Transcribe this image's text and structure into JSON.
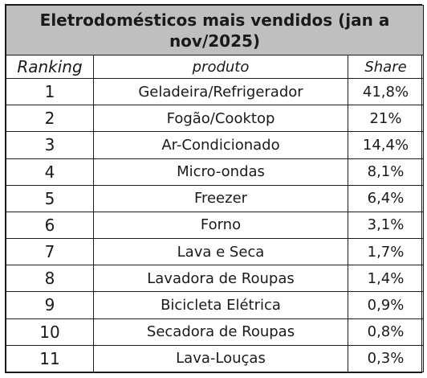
{
  "chart_data": {
    "type": "table",
    "title": "Eletrodomésticos mais vendidos (jan a nov/2025)",
    "columns": [
      "Ranking",
      "produto",
      "Share"
    ],
    "rows": [
      {
        "rank": "1",
        "product": "Geladeira/Refrigerador",
        "share": "41,8%"
      },
      {
        "rank": "2",
        "product": "Fogão/Cooktop",
        "share": "21%"
      },
      {
        "rank": "3",
        "product": "Ar-Condicionado",
        "share": "14,4%"
      },
      {
        "rank": "4",
        "product": "Micro-ondas",
        "share": "8,1%"
      },
      {
        "rank": "5",
        "product": "Freezer",
        "share": "6,4%"
      },
      {
        "rank": "6",
        "product": "Forno",
        "share": "3,1%"
      },
      {
        "rank": "7",
        "product": "Lava e Seca",
        "share": "1,7%"
      },
      {
        "rank": "8",
        "product": "Lavadora de Roupas",
        "share": "1,4%"
      },
      {
        "rank": "9",
        "product": "Bicicleta Elétrica",
        "share": "0,9%"
      },
      {
        "rank": "10",
        "product": "Secadora de Roupas",
        "share": "0,8%"
      },
      {
        "rank": "11",
        "product": "Lava-Louças",
        "share": "0,3%"
      }
    ]
  },
  "colors": {
    "title_background": "#bfbfbf",
    "border": "#1a1a1a"
  }
}
